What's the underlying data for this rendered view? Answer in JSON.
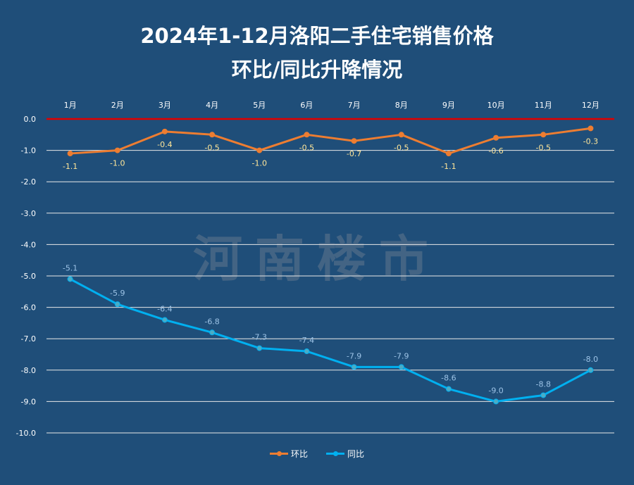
{
  "title_line1": "2024年1-12月洛阳二手住宅销售价格",
  "title_line2": "环比/同比升降情况",
  "watermark": "河南楼市",
  "chart_data": {
    "type": "line",
    "title": "2024年1-12月洛阳二手住宅销售价格 环比/同比升降情况",
    "categories": [
      "1月",
      "2月",
      "3月",
      "4月",
      "5月",
      "6月",
      "7月",
      "8月",
      "9月",
      "10月",
      "11月",
      "12月"
    ],
    "series": [
      {
        "name": "环比",
        "color": "#ed7d31",
        "label_color": "#ffe699",
        "values": [
          -1.1,
          -1.0,
          -0.4,
          -0.5,
          -1.0,
          -0.5,
          -0.7,
          -0.5,
          -1.1,
          -0.6,
          -0.5,
          -0.3
        ]
      },
      {
        "name": "同比",
        "color": "#00b0f0",
        "label_color": "#9dc3e6",
        "values": [
          -5.1,
          -5.9,
          -6.4,
          -6.8,
          -7.3,
          -7.4,
          -7.9,
          -7.9,
          -8.6,
          -9.0,
          -8.8,
          -8.0
        ]
      }
    ],
    "ylim": [
      -10,
      0
    ],
    "yticks": [
      "0.0",
      "-1.0",
      "-2.0",
      "-3.0",
      "-4.0",
      "-5.0",
      "-6.0",
      "-7.0",
      "-8.0",
      "-9.0",
      "-10.0"
    ],
    "legend": "bottom",
    "grid": true
  }
}
